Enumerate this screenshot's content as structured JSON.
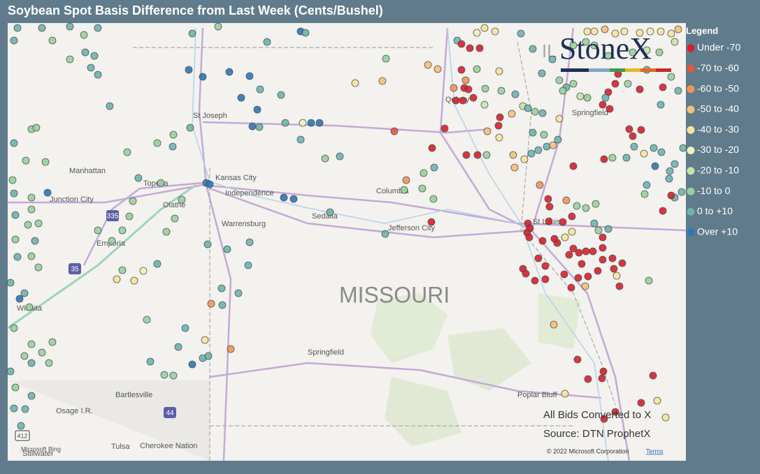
{
  "header": {
    "title": "Soybean Spot Basis Difference from Last Week (Cents/Bushel)"
  },
  "logo": {
    "text": "StoneX"
  },
  "legend": {
    "title": "Legend",
    "items": [
      {
        "label": "Under -70",
        "color": "#d7202e"
      },
      {
        "label": "-70 to -60",
        "color": "#e4573b"
      },
      {
        "label": "-60 to -50",
        "color": "#f0955a"
      },
      {
        "label": "-50 to -40",
        "color": "#f6c07a"
      },
      {
        "label": "-40 to -30",
        "color": "#f8e49c"
      },
      {
        "label": "-30 to -20",
        "color": "#eef4bc"
      },
      {
        "label": "-20 to -10",
        "color": "#c6e4a8"
      },
      {
        "label": "-10 to 0",
        "color": "#97d1a0"
      },
      {
        "label": "0 to +10",
        "color": "#6cb3b0"
      },
      {
        "label": "Over +10",
        "color": "#2c77b8"
      }
    ]
  },
  "map": {
    "state_label": "MISSOURI",
    "labels": [
      "St Joseph",
      "Kansas City",
      "Independence",
      "Manhattan",
      "Topeka",
      "Junction City",
      "Olathe",
      "Columbia",
      "Sedalia",
      "Warrensburg",
      "Jefferson City",
      "Emporia",
      "St Louis",
      "Springfield",
      "Quincy",
      "Springfield",
      "Wichita",
      "Bartlesville",
      "Osage I.R.",
      "Tulsa",
      "Cherokee Nation",
      "Poplar Bluff",
      "Stillwater",
      "IL"
    ],
    "shields": [
      "335",
      "35",
      "44",
      "412"
    ]
  },
  "notes": [
    "All Bids Converted to X",
    "Source: DTN ProphetX"
  ],
  "attribution": {
    "copyright": "© 2022 Microsoft Corporation",
    "terms": "Terms",
    "bing": "Microsoft Bing"
  }
}
